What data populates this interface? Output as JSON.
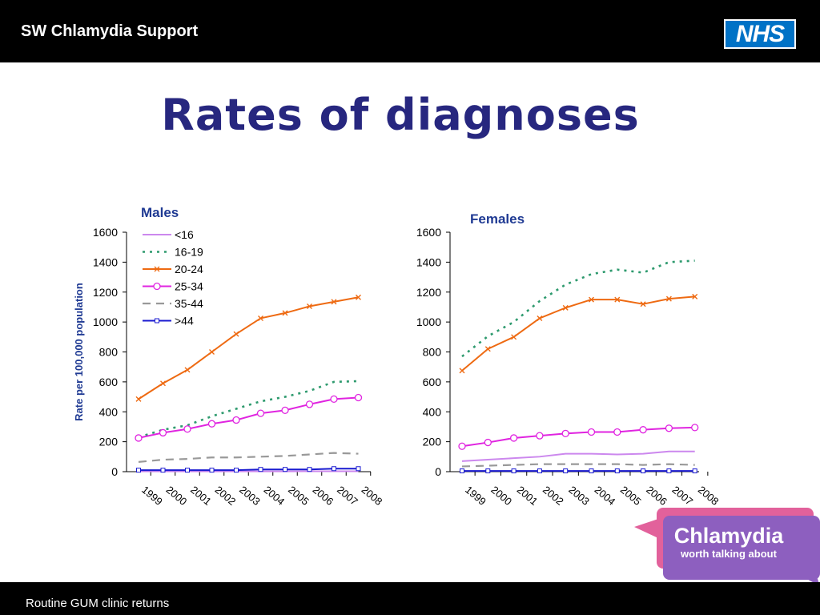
{
  "header": {
    "title": "SW Chlamydia Support",
    "logo_text": "NHS"
  },
  "slide": {
    "title": "Rates of diagnoses"
  },
  "footer": {
    "source": "Routine GUM clinic returns"
  },
  "badge": {
    "line1": "Chlamydia",
    "line2": "worth talking about"
  },
  "colors": {
    "title": "#27277f",
    "panel_title": "#1f3a93",
    "lt16": "#cc88ee",
    "16-19": "#2e9a6e",
    "20-24": "#ee6a12",
    "25-34": "#e024e0",
    "35-44": "#999999",
    "gt44": "#1a1ad0",
    "badge_pink": "#e2619b",
    "badge_purple": "#8d5fbf"
  },
  "chart_data": [
    {
      "type": "line",
      "title": "Males",
      "ylabel": "Rate per 100,000 population",
      "xlabel": "",
      "ylim": [
        0,
        1600
      ],
      "yticks": [
        0,
        200,
        400,
        600,
        800,
        1000,
        1200,
        1400,
        1600
      ],
      "x": [
        "1999",
        "2000",
        "2001",
        "2002",
        "2003",
        "2004",
        "2005",
        "2006",
        "2007",
        "2008"
      ],
      "legend": "top-left",
      "series": [
        {
          "name": "<16",
          "key": "lt16",
          "dash": "solid",
          "marker": "none",
          "values": [
            2,
            2,
            2,
            2,
            2,
            2,
            2,
            3,
            3,
            3
          ]
        },
        {
          "name": "16-19",
          "key": "16-19",
          "dash": "dotted",
          "marker": "none",
          "values": [
            230,
            280,
            310,
            370,
            420,
            470,
            500,
            540,
            600,
            605
          ]
        },
        {
          "name": "20-24",
          "key": "20-24",
          "dash": "solid",
          "marker": "x",
          "values": [
            485,
            590,
            680,
            800,
            920,
            1025,
            1060,
            1105,
            1135,
            1165
          ]
        },
        {
          "name": "25-34",
          "key": "25-34",
          "dash": "solid",
          "marker": "circle",
          "values": [
            225,
            260,
            285,
            320,
            345,
            390,
            410,
            450,
            485,
            495
          ]
        },
        {
          "name": "35-44",
          "key": "35-44",
          "dash": "dashed",
          "marker": "none",
          "values": [
            65,
            80,
            85,
            95,
            95,
            100,
            105,
            115,
            125,
            120
          ]
        },
        {
          "name": ">44",
          "key": "gt44",
          "dash": "solid",
          "marker": "square",
          "values": [
            10,
            10,
            10,
            10,
            10,
            15,
            15,
            15,
            20,
            20
          ]
        }
      ]
    },
    {
      "type": "line",
      "title": "Females",
      "ylabel": "",
      "xlabel": "",
      "ylim": [
        0,
        1600
      ],
      "yticks": [
        0,
        200,
        400,
        600,
        800,
        1000,
        1200,
        1400,
        1600
      ],
      "x": [
        "1999",
        "2000",
        "2001",
        "2002",
        "2003",
        "2004",
        "2005",
        "2006",
        "2007",
        "2008"
      ],
      "series": [
        {
          "name": "<16",
          "key": "lt16",
          "dash": "solid",
          "marker": "none",
          "values": [
            70,
            80,
            90,
            100,
            120,
            120,
            115,
            120,
            135,
            135
          ]
        },
        {
          "name": "16-19",
          "key": "16-19",
          "dash": "dotted",
          "marker": "none",
          "values": [
            770,
            905,
            1000,
            1140,
            1250,
            1320,
            1350,
            1330,
            1400,
            1410
          ]
        },
        {
          "name": "20-24",
          "key": "20-24",
          "dash": "solid",
          "marker": "x",
          "values": [
            675,
            820,
            900,
            1025,
            1095,
            1150,
            1150,
            1120,
            1155,
            1170
          ]
        },
        {
          "name": "25-34",
          "key": "25-34",
          "dash": "solid",
          "marker": "circle",
          "values": [
            170,
            195,
            225,
            240,
            255,
            265,
            265,
            280,
            290,
            295
          ]
        },
        {
          "name": "35-44",
          "key": "35-44",
          "dash": "dashed",
          "marker": "none",
          "values": [
            35,
            40,
            45,
            50,
            50,
            50,
            50,
            45,
            50,
            45
          ]
        },
        {
          "name": ">44",
          "key": "gt44",
          "dash": "solid",
          "marker": "square",
          "values": [
            5,
            5,
            5,
            5,
            5,
            5,
            5,
            5,
            5,
            5
          ]
        }
      ]
    }
  ]
}
